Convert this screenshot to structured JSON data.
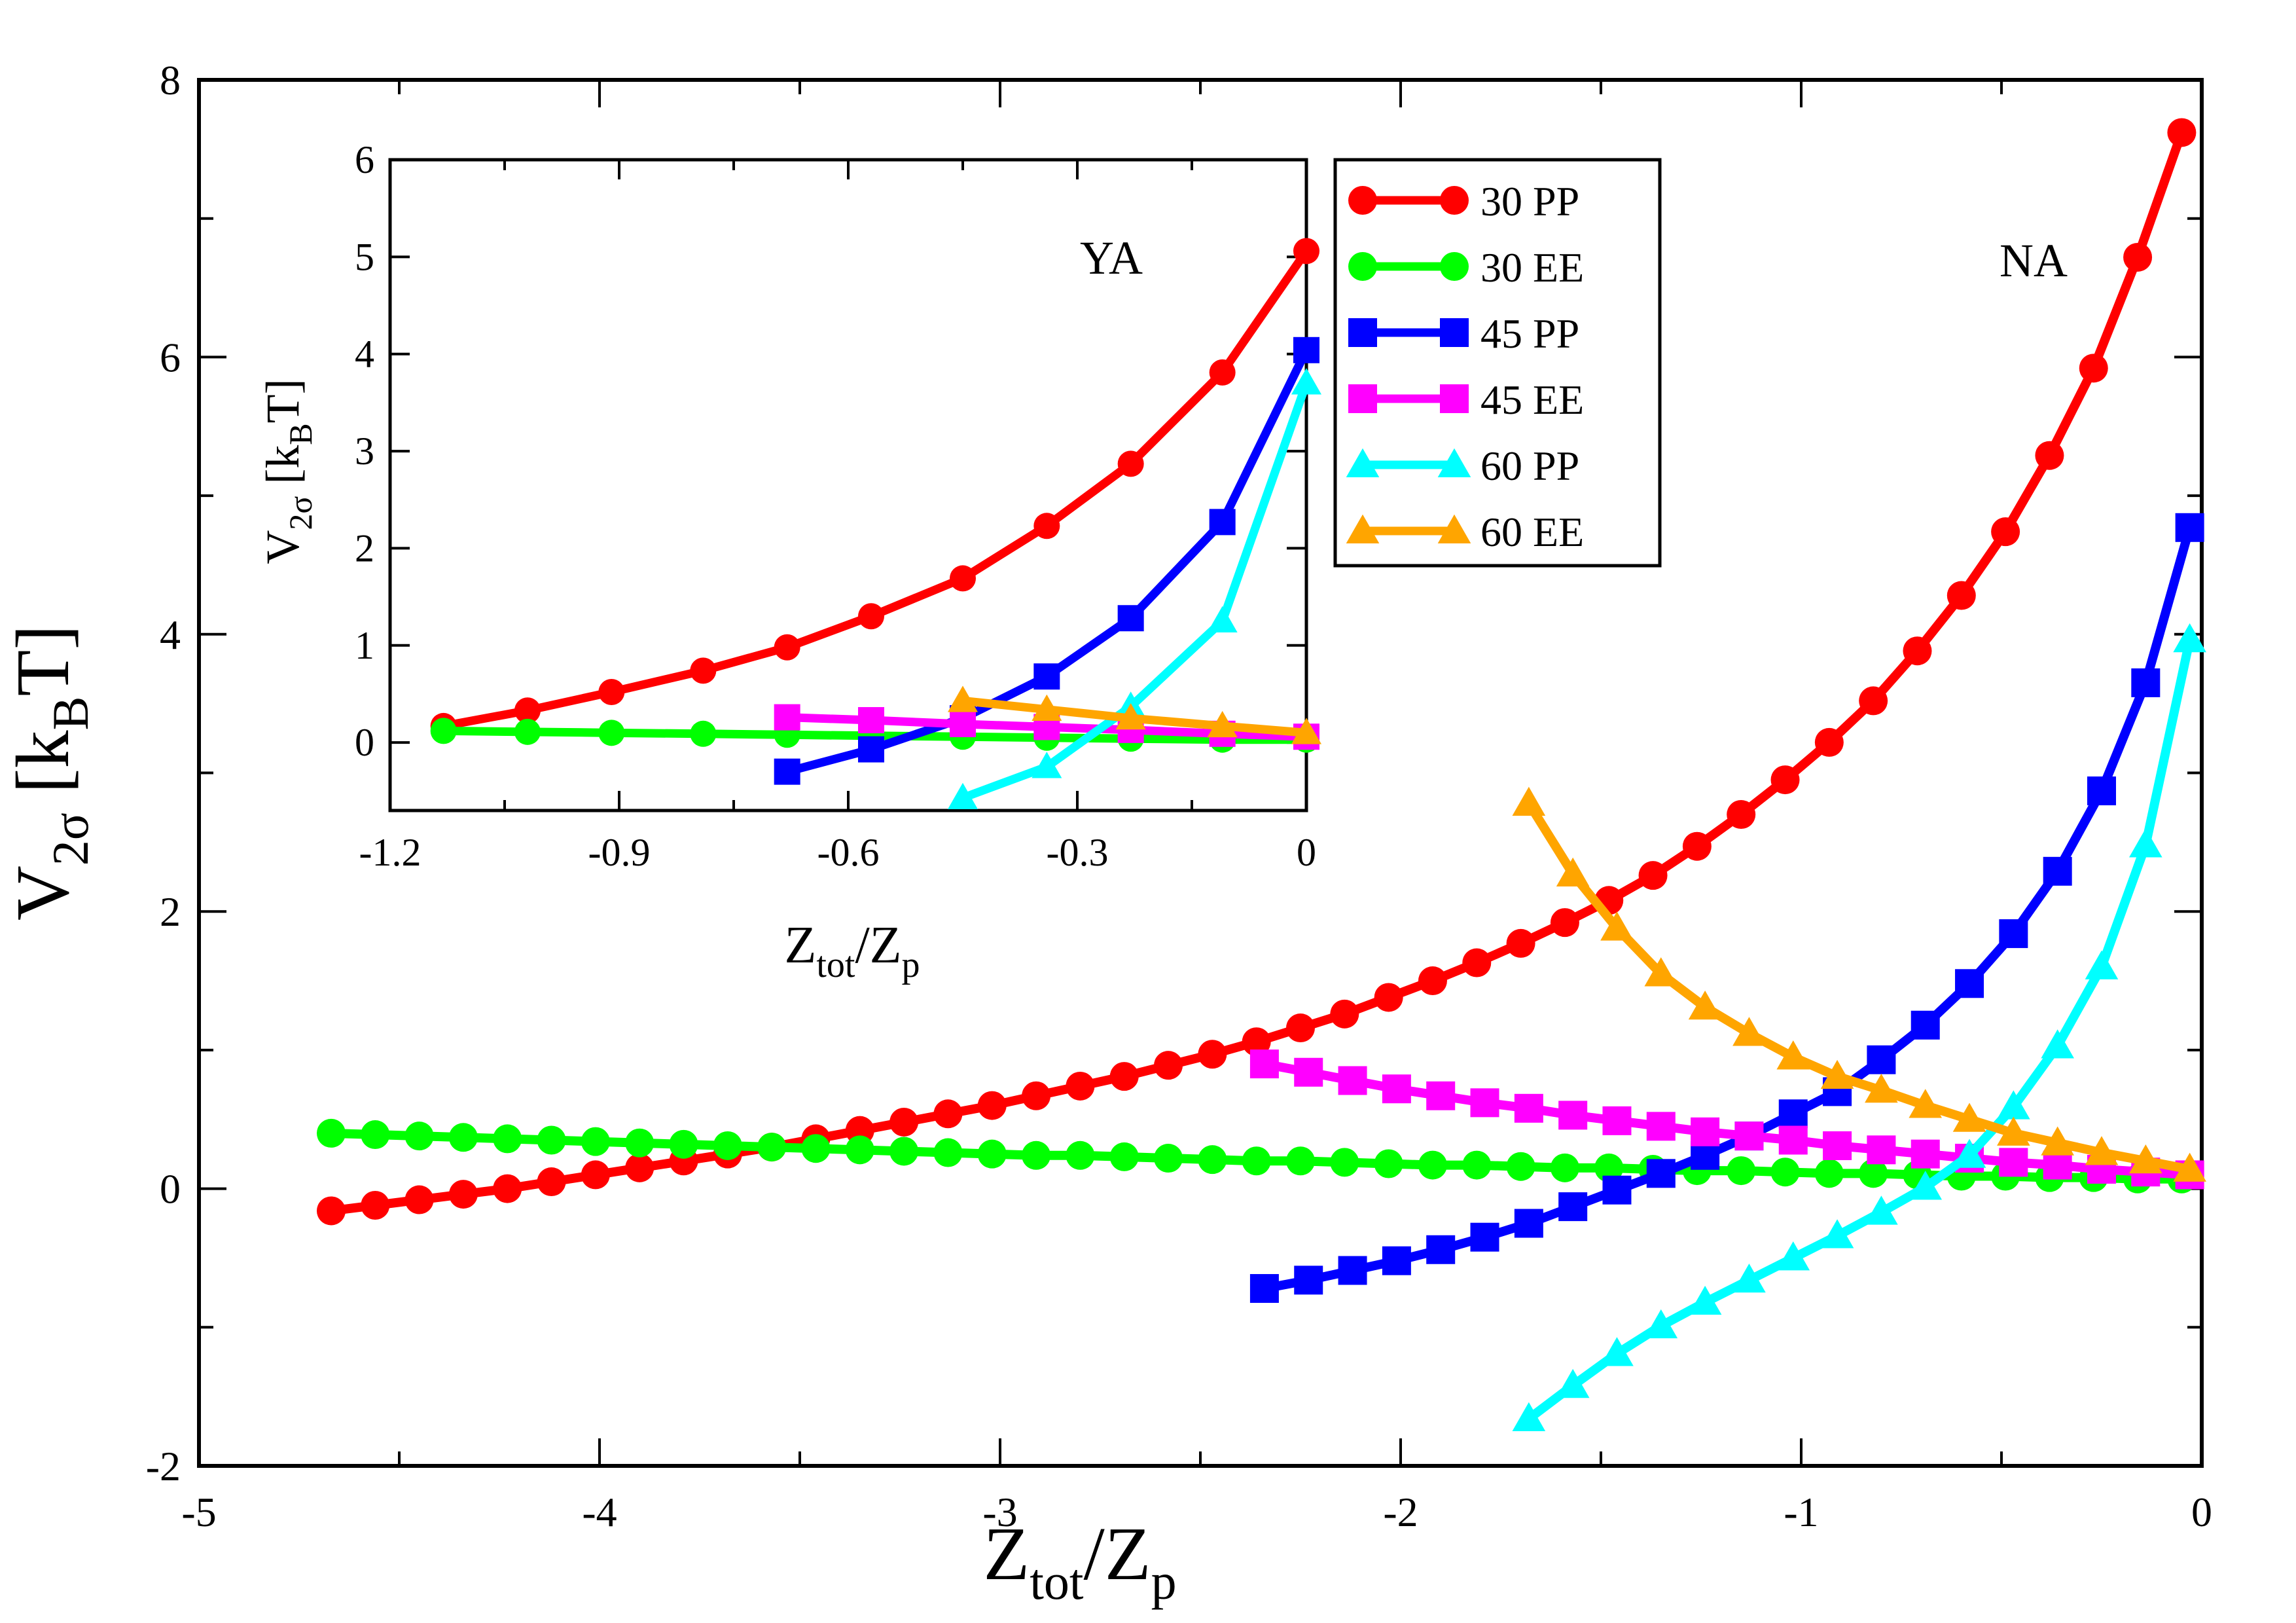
{
  "main": {
    "xlabel": {
      "base": "Z",
      "sub1": "tot",
      "mid": "/Z",
      "sub2": "p"
    },
    "ylabel": {
      "base": "V",
      "sub1": "2σ",
      "mid": " [k",
      "sub2": "B",
      "end": "T]"
    },
    "xlim": [
      -5,
      0
    ],
    "ylim": [
      -2,
      8
    ],
    "xticks": [
      -5,
      -4,
      -3,
      -2,
      -1,
      0
    ],
    "xtick_labels": [
      "-5",
      "-4",
      "-3",
      "-2",
      "-1",
      "0"
    ],
    "yticks": [
      -2,
      0,
      2,
      4,
      6,
      8
    ],
    "ytick_labels": [
      "-2",
      "0",
      "2",
      "4",
      "6",
      "8"
    ],
    "annotation": "NA"
  },
  "inset": {
    "xlabel": {
      "base": "Z",
      "sub1": "tot",
      "mid": "/Z",
      "sub2": "p"
    },
    "ylabel": {
      "base": "V",
      "sub1": "2σ",
      "mid": " [k",
      "sub2": "B",
      "end": "T]"
    },
    "xlim": [
      -1.2,
      0
    ],
    "ylim": [
      -0.7,
      6
    ],
    "xticks": [
      -1.2,
      -0.9,
      -0.6,
      -0.3,
      0
    ],
    "xtick_labels": [
      "-1.2",
      "-0.9",
      "-0.6",
      "-0.3",
      "0"
    ],
    "yticks": [
      0,
      1,
      2,
      3,
      4,
      5,
      6
    ],
    "ytick_labels": [
      "0",
      "1",
      "2",
      "3",
      "4",
      "5",
      "6"
    ],
    "annotation": "YA"
  },
  "legend": [
    {
      "label": "30 PP",
      "color": "#ff0000",
      "marker": "circle"
    },
    {
      "label": "30 EE",
      "color": "#00ff00",
      "marker": "circle"
    },
    {
      "label": "45 PP",
      "color": "#0000ff",
      "marker": "square"
    },
    {
      "label": "45 EE",
      "color": "#ff00ff",
      "marker": "square"
    },
    {
      "label": "60 PP",
      "color": "#00ffff",
      "marker": "triangle"
    },
    {
      "label": "60 EE",
      "color": "#ffa500",
      "marker": "triangle"
    }
  ],
  "chart_data": [
    {
      "type": "line",
      "title": "",
      "xlabel": "Ztot/Zp",
      "ylabel": "V2σ [kBT]",
      "xlim": [
        -5,
        0
      ],
      "ylim": [
        -2,
        8
      ],
      "series": [
        {
          "name": "30 PP",
          "color": "#ff0000",
          "marker": "circle",
          "x": [
            -4.67,
            -4.56,
            -4.45,
            -4.34,
            -4.23,
            -4.12,
            -4.01,
            -3.9,
            -3.79,
            -3.68,
            -3.57,
            -3.46,
            -3.35,
            -3.24,
            -3.13,
            -3.02,
            -2.91,
            -2.8,
            -2.69,
            -2.58,
            -2.47,
            -2.36,
            -2.25,
            -2.14,
            -2.03,
            -1.92,
            -1.81,
            -1.7,
            -1.59,
            -1.48,
            -1.37,
            -1.26,
            -1.15,
            -1.04,
            -0.93,
            -0.82,
            -0.71,
            -0.6,
            -0.49,
            -0.38,
            -0.27,
            -0.16,
            -0.05
          ],
          "y": [
            -0.16,
            -0.12,
            -0.08,
            -0.04,
            0.0,
            0.05,
            0.1,
            0.15,
            0.2,
            0.25,
            0.3,
            0.36,
            0.42,
            0.48,
            0.54,
            0.6,
            0.67,
            0.74,
            0.81,
            0.89,
            0.97,
            1.06,
            1.16,
            1.26,
            1.38,
            1.5,
            1.63,
            1.77,
            1.92,
            2.08,
            2.26,
            2.47,
            2.7,
            2.95,
            3.22,
            3.52,
            3.88,
            4.28,
            4.74,
            5.29,
            5.92,
            6.72,
            7.62
          ]
        },
        {
          "name": "30 EE",
          "color": "#00ff00",
          "marker": "circle",
          "x": [
            -4.67,
            -4.56,
            -4.45,
            -4.34,
            -4.23,
            -4.12,
            -4.01,
            -3.9,
            -3.79,
            -3.68,
            -3.57,
            -3.46,
            -3.35,
            -3.24,
            -3.13,
            -3.02,
            -2.91,
            -2.8,
            -2.69,
            -2.58,
            -2.47,
            -2.36,
            -2.25,
            -2.14,
            -2.03,
            -1.92,
            -1.81,
            -1.7,
            -1.59,
            -1.48,
            -1.37,
            -1.26,
            -1.15,
            -1.04,
            -0.93,
            -0.82,
            -0.71,
            -0.6,
            -0.49,
            -0.38,
            -0.27,
            -0.16,
            -0.05
          ],
          "y": [
            0.4,
            0.39,
            0.38,
            0.37,
            0.36,
            0.35,
            0.34,
            0.33,
            0.32,
            0.31,
            0.3,
            0.29,
            0.28,
            0.27,
            0.26,
            0.25,
            0.24,
            0.24,
            0.23,
            0.22,
            0.21,
            0.2,
            0.2,
            0.19,
            0.18,
            0.17,
            0.17,
            0.16,
            0.15,
            0.15,
            0.14,
            0.13,
            0.13,
            0.12,
            0.11,
            0.11,
            0.1,
            0.09,
            0.09,
            0.08,
            0.08,
            0.07,
            0.07
          ]
        },
        {
          "name": "45 PP",
          "color": "#0000ff",
          "marker": "square",
          "x": [
            -2.34,
            -2.23,
            -2.12,
            -2.01,
            -1.9,
            -1.79,
            -1.68,
            -1.57,
            -1.46,
            -1.35,
            -1.24,
            -1.13,
            -1.02,
            -0.91,
            -0.8,
            -0.69,
            -0.58,
            -0.47,
            -0.36,
            -0.25,
            -0.14,
            -0.03
          ],
          "y": [
            -0.72,
            -0.66,
            -0.59,
            -0.52,
            -0.44,
            -0.35,
            -0.25,
            -0.13,
            -0.01,
            0.11,
            0.24,
            0.38,
            0.54,
            0.7,
            0.93,
            1.18,
            1.48,
            1.84,
            2.29,
            2.87,
            3.65,
            4.77
          ]
        },
        {
          "name": "45 EE",
          "color": "#ff00ff",
          "marker": "square",
          "x": [
            -2.34,
            -2.23,
            -2.12,
            -2.01,
            -1.9,
            -1.79,
            -1.68,
            -1.57,
            -1.46,
            -1.35,
            -1.24,
            -1.13,
            -1.02,
            -0.91,
            -0.8,
            -0.69,
            -0.58,
            -0.47,
            -0.36,
            -0.25,
            -0.14,
            -0.03
          ],
          "y": [
            0.9,
            0.84,
            0.78,
            0.72,
            0.67,
            0.62,
            0.58,
            0.53,
            0.49,
            0.45,
            0.41,
            0.38,
            0.35,
            0.31,
            0.28,
            0.25,
            0.22,
            0.19,
            0.17,
            0.14,
            0.12,
            0.1
          ]
        },
        {
          "name": "60 PP",
          "color": "#00ffff",
          "marker": "triangle",
          "x": [
            -1.68,
            -1.57,
            -1.46,
            -1.35,
            -1.24,
            -1.13,
            -1.02,
            -0.91,
            -0.8,
            -0.69,
            -0.58,
            -0.47,
            -0.36,
            -0.25,
            -0.14,
            -0.03
          ],
          "y": [
            -1.66,
            -1.42,
            -1.19,
            -0.99,
            -0.82,
            -0.66,
            -0.5,
            -0.34,
            -0.17,
            0.01,
            0.24,
            0.59,
            1.03,
            1.6,
            2.48,
            3.96
          ]
        },
        {
          "name": "60 EE",
          "color": "#ffa500",
          "marker": "triangle",
          "x": [
            -1.68,
            -1.57,
            -1.46,
            -1.35,
            -1.24,
            -1.13,
            -1.02,
            -0.91,
            -0.8,
            -0.69,
            -0.58,
            -0.47,
            -0.36,
            -0.25,
            -0.14,
            -0.03
          ],
          "y": [
            2.78,
            2.27,
            1.88,
            1.55,
            1.31,
            1.12,
            0.95,
            0.81,
            0.71,
            0.6,
            0.5,
            0.4,
            0.33,
            0.26,
            0.2,
            0.14
          ]
        }
      ]
    },
    {
      "type": "line",
      "title": "",
      "xlabel": "Ztot/Zp",
      "ylabel": "V2σ [kBT]",
      "xlim": [
        -1.2,
        0
      ],
      "ylim": [
        -0.7,
        6
      ],
      "series": [
        {
          "name": "30 PP",
          "color": "#ff0000",
          "marker": "circle",
          "x": [
            -1.13,
            -1.02,
            -0.91,
            -0.79,
            -0.68,
            -0.57,
            -0.45,
            -0.34,
            -0.23,
            -0.11,
            0.0
          ],
          "y": [
            0.17,
            0.33,
            0.52,
            0.74,
            0.98,
            1.3,
            1.69,
            2.23,
            2.87,
            3.81,
            5.06
          ]
        },
        {
          "name": "30 EE",
          "color": "#00ff00",
          "marker": "circle",
          "x": [
            -1.13,
            -1.02,
            -0.91,
            -0.79,
            -0.68,
            -0.57,
            -0.45,
            -0.34,
            -0.23,
            -0.11,
            0.0
          ],
          "y": [
            0.12,
            0.11,
            0.1,
            0.09,
            0.08,
            0.07,
            0.06,
            0.05,
            0.04,
            0.03,
            0.03
          ]
        },
        {
          "name": "45 PP",
          "color": "#0000ff",
          "marker": "square",
          "x": [
            -0.68,
            -0.57,
            -0.45,
            -0.34,
            -0.23,
            -0.11,
            0.0
          ],
          "y": [
            -0.3,
            -0.07,
            0.25,
            0.68,
            1.28,
            2.27,
            4.04
          ]
        },
        {
          "name": "45 EE",
          "color": "#ff00ff",
          "marker": "square",
          "x": [
            -0.68,
            -0.57,
            -0.45,
            -0.34,
            -0.23,
            -0.11,
            0.0
          ],
          "y": [
            0.26,
            0.23,
            0.19,
            0.16,
            0.13,
            0.09,
            0.06
          ]
        },
        {
          "name": "60 PP",
          "color": "#00ffff",
          "marker": "triangle",
          "x": [
            -0.45,
            -0.34,
            -0.23,
            -0.11,
            0.0
          ],
          "y": [
            -0.57,
            -0.25,
            0.37,
            1.25,
            3.7
          ]
        },
        {
          "name": "60 EE",
          "color": "#ffa500",
          "marker": "triangle",
          "x": [
            -0.45,
            -0.34,
            -0.23,
            -0.11,
            0.0
          ],
          "y": [
            0.43,
            0.34,
            0.25,
            0.17,
            0.1
          ]
        }
      ]
    }
  ]
}
